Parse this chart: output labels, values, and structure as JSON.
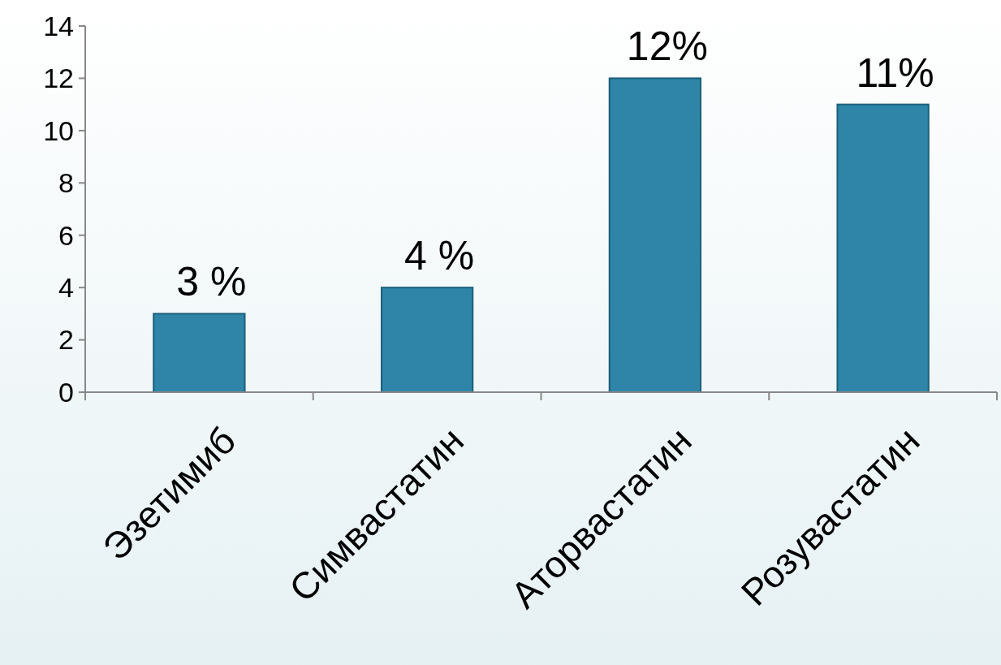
{
  "chart_data": {
    "type": "bar",
    "categories": [
      "Эзетимиб",
      "Симвастатин",
      "Аторвастатин",
      "Розувастатин"
    ],
    "values": [
      3,
      4,
      12,
      11
    ],
    "value_labels": [
      "3 %",
      "4 %",
      "12%",
      "11%"
    ],
    "color": "#2e85a8",
    "ylim": [
      0,
      14
    ],
    "yticks": [
      0,
      2,
      4,
      6,
      8,
      10,
      12,
      14
    ],
    "grid": false
  }
}
